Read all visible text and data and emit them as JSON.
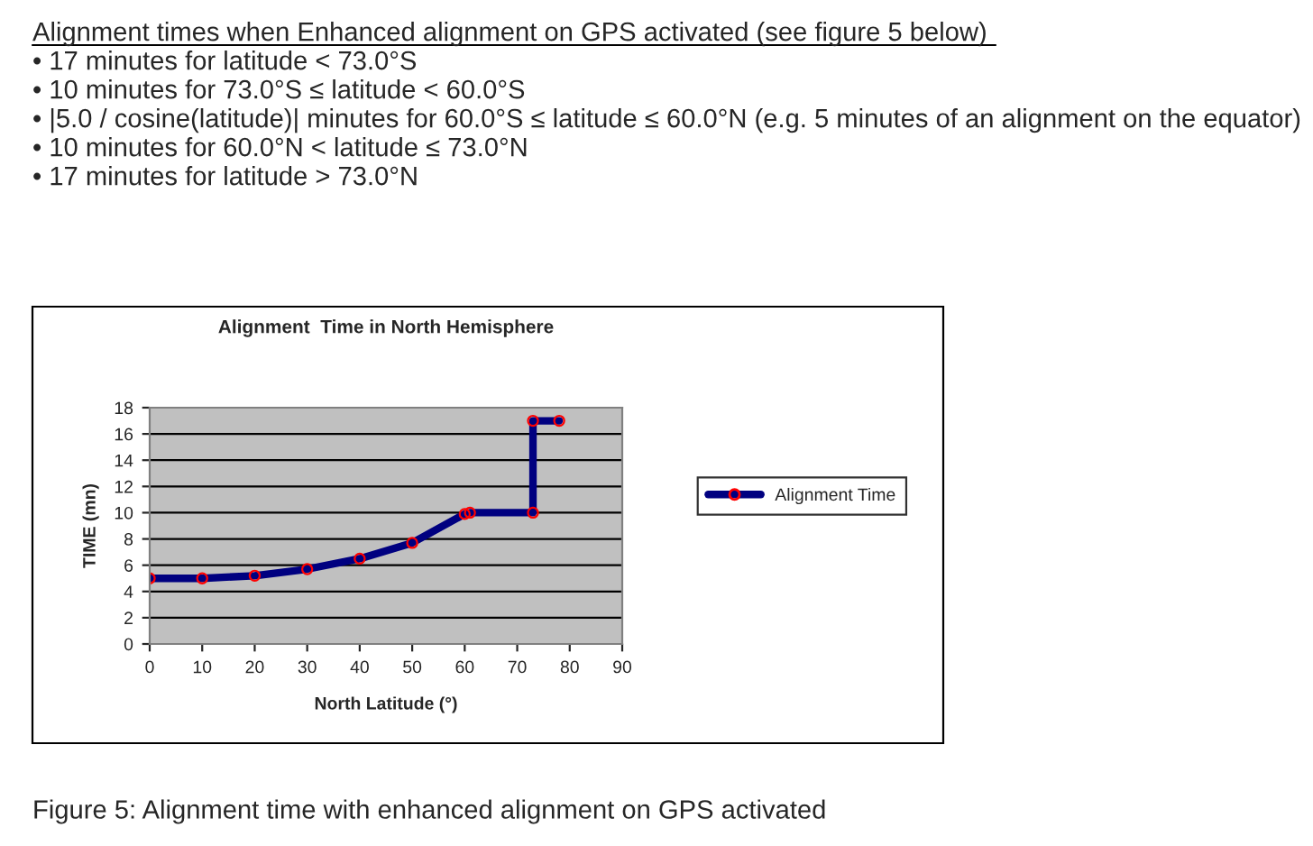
{
  "chart_data": {
    "type": "line",
    "title": "Alignment  Time in North Hemisphere",
    "xlabel": "North Latitude (°)",
    "ylabel": "TIME (mn)",
    "annotations": [
      "Alignment times when Enhanced alignment on GPS activated (see figure 5 below)",
      "• 17 minutes for latitude < 73.0°S",
      "• 10 minutes for 73.0°S ≤ latitude < 60.0°S",
      "• |5.0 / cosine(latitude)| minutes for 60.0°S ≤ latitude ≤ 60.0°N (e.g. 5 minutes of an alignment on the equator)",
      "• 10 minutes for 60.0°N < latitude ≤ 73.0°N",
      "• 17 minutes for latitude > 73.0°N",
      "Figure 5: Alignment time with enhanced alignment on GPS activated"
    ],
    "x": [
      0,
      10,
      20,
      30,
      40,
      50,
      60,
      61,
      73,
      73,
      78
    ],
    "series": [
      {
        "name": "Alignment Time",
        "color": "#000080",
        "values": [
          5,
          5,
          5.2,
          5.7,
          6.5,
          7.7,
          9.9,
          10,
          10,
          17,
          17
        ]
      }
    ],
    "xlim": [
      0,
      90
    ],
    "xticks": [
      0,
      10,
      20,
      30,
      40,
      50,
      60,
      70,
      80,
      90
    ],
    "ylim": [
      0,
      18
    ],
    "yticks": [
      0,
      2,
      4,
      6,
      8,
      10,
      12,
      14,
      16,
      18
    ],
    "grid": "y",
    "legend": "right",
    "marker": "circle",
    "line_style": "solid"
  }
}
